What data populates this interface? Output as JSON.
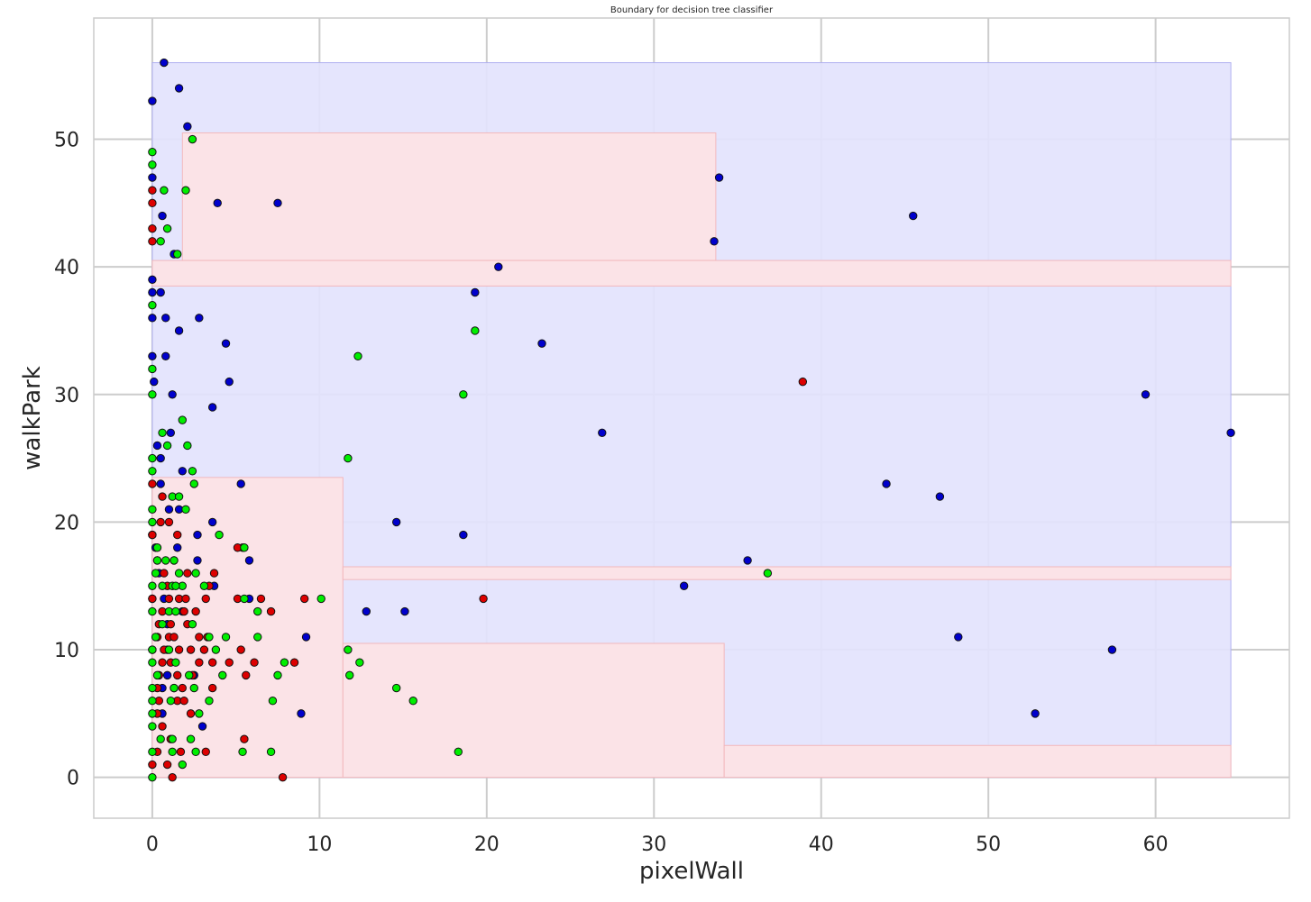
{
  "chart_data": {
    "type": "scatter",
    "title": "Boundary for decision tree classifier",
    "xlabel": "pixelWall",
    "ylabel": "walkPark",
    "xlim": [
      -3.5,
      68
    ],
    "ylim": [
      -3.2,
      59.5
    ],
    "x_ticks": [
      0,
      10,
      20,
      30,
      40,
      50,
      60
    ],
    "y_ticks": [
      0,
      10,
      20,
      30,
      40,
      50
    ],
    "grid": true,
    "colors": {
      "blue_region": "#e3e3fd",
      "red_region": "#fde3e5",
      "region_edge_blue": "#b0b0f0",
      "region_edge_red": "#f2b8bd",
      "blue_point": "#0000cc",
      "red_point": "#dd0000",
      "green_point": "#00ee00",
      "grid": "#cccccc",
      "frame": "#cccccc"
    },
    "regions": [
      {
        "class": "blue",
        "x": [
          0,
          64.5
        ],
        "y": [
          0,
          56
        ]
      },
      {
        "class": "red",
        "x": [
          1.8,
          33.7
        ],
        "y": [
          40.5,
          50.5
        ]
      },
      {
        "class": "red",
        "x": [
          0,
          64.5
        ],
        "y": [
          38.5,
          40.5
        ]
      },
      {
        "class": "red",
        "x": [
          0,
          11.4
        ],
        "y": [
          0,
          23.5
        ]
      },
      {
        "class": "red",
        "x": [
          11.4,
          64.5
        ],
        "y": [
          15.5,
          16.5
        ]
      },
      {
        "class": "red",
        "x": [
          11.4,
          34.2
        ],
        "y": [
          0,
          10.5
        ]
      },
      {
        "class": "red",
        "x": [
          34.2,
          64.5
        ],
        "y": [
          0,
          2.5
        ]
      }
    ],
    "series": [
      {
        "name": "",
        "class": "blue",
        "points": [
          [
            0.7,
            56
          ],
          [
            1.6,
            54
          ],
          [
            0,
            53
          ],
          [
            2.1,
            51
          ],
          [
            0,
            47
          ],
          [
            33.9,
            47
          ],
          [
            3.9,
            45
          ],
          [
            7.5,
            45
          ],
          [
            45.5,
            44
          ],
          [
            0.6,
            44
          ],
          [
            1.3,
            41
          ],
          [
            33.6,
            42
          ],
          [
            20.7,
            40
          ],
          [
            0,
            39
          ],
          [
            0,
            38
          ],
          [
            0.5,
            38
          ],
          [
            19.3,
            38
          ],
          [
            0,
            36
          ],
          [
            0.8,
            36
          ],
          [
            2.8,
            36
          ],
          [
            1.6,
            35
          ],
          [
            4.4,
            34
          ],
          [
            23.3,
            34
          ],
          [
            0.8,
            33
          ],
          [
            0,
            33
          ],
          [
            0.1,
            31
          ],
          [
            4.6,
            31
          ],
          [
            1.2,
            30
          ],
          [
            59.4,
            30
          ],
          [
            3.6,
            29
          ],
          [
            1.1,
            27
          ],
          [
            26.9,
            27
          ],
          [
            64.5,
            27
          ],
          [
            0.3,
            26
          ],
          [
            0.5,
            25
          ],
          [
            1.8,
            24
          ],
          [
            0.5,
            23
          ],
          [
            5.3,
            23
          ],
          [
            43.9,
            23
          ],
          [
            47.1,
            22
          ],
          [
            1,
            21
          ],
          [
            1.6,
            21
          ],
          [
            3.6,
            20
          ],
          [
            14.6,
            20
          ],
          [
            18.6,
            19
          ],
          [
            0,
            19
          ],
          [
            2.7,
            19
          ],
          [
            0.2,
            18
          ],
          [
            1.5,
            18
          ],
          [
            5.8,
            17
          ],
          [
            35.6,
            17
          ],
          [
            2.7,
            17
          ],
          [
            0.4,
            16
          ],
          [
            3.7,
            15
          ],
          [
            31.8,
            15
          ],
          [
            0,
            14
          ],
          [
            5.8,
            14
          ],
          [
            12.8,
            13
          ],
          [
            15.1,
            13
          ],
          [
            0.9,
            12
          ],
          [
            9.2,
            11
          ],
          [
            48.2,
            11
          ],
          [
            57.4,
            10
          ],
          [
            0.9,
            8
          ],
          [
            2.5,
            8
          ],
          [
            0.6,
            7
          ],
          [
            1.3,
            7
          ],
          [
            52.8,
            5
          ],
          [
            0.6,
            5
          ],
          [
            8.9,
            5
          ],
          [
            3,
            4
          ],
          [
            0.7,
            14
          ],
          [
            1.8,
            13
          ],
          [
            0.9,
            10
          ]
        ]
      },
      {
        "name": "",
        "class": "red",
        "points": [
          [
            0,
            46
          ],
          [
            0,
            45
          ],
          [
            0,
            43
          ],
          [
            0,
            42
          ],
          [
            38.9,
            31
          ],
          [
            0,
            23
          ],
          [
            0.6,
            22
          ],
          [
            0.5,
            20
          ],
          [
            1,
            20
          ],
          [
            0,
            19
          ],
          [
            1.5,
            19
          ],
          [
            3.7,
            16
          ],
          [
            2.1,
            16
          ],
          [
            0.7,
            16
          ],
          [
            5.4,
            18
          ],
          [
            5.1,
            18
          ],
          [
            0.3,
            17
          ],
          [
            1.3,
            17
          ],
          [
            3.4,
            15
          ],
          [
            0.9,
            15
          ],
          [
            0,
            14
          ],
          [
            1,
            14
          ],
          [
            1.6,
            14
          ],
          [
            2,
            14
          ],
          [
            3.2,
            14
          ],
          [
            5.1,
            14
          ],
          [
            6.5,
            14
          ],
          [
            9.1,
            14
          ],
          [
            19.8,
            14
          ],
          [
            0.6,
            13
          ],
          [
            1.9,
            13
          ],
          [
            7.1,
            13
          ],
          [
            0.4,
            12
          ],
          [
            1.1,
            12
          ],
          [
            2.1,
            12
          ],
          [
            0.3,
            11
          ],
          [
            1,
            11
          ],
          [
            2.8,
            11
          ],
          [
            3.3,
            11
          ],
          [
            0,
            10
          ],
          [
            0.7,
            10
          ],
          [
            1.6,
            10
          ],
          [
            2.3,
            10
          ],
          [
            3.1,
            10
          ],
          [
            5.3,
            10
          ],
          [
            0.6,
            9
          ],
          [
            1.1,
            9
          ],
          [
            2.8,
            9
          ],
          [
            3.6,
            9
          ],
          [
            4.6,
            9
          ],
          [
            6.1,
            9
          ],
          [
            8.5,
            9
          ],
          [
            0.4,
            8
          ],
          [
            1.5,
            8
          ],
          [
            2.4,
            8
          ],
          [
            5.6,
            8
          ],
          [
            0.3,
            7
          ],
          [
            1.8,
            7
          ],
          [
            3.6,
            7
          ],
          [
            0.4,
            6
          ],
          [
            1.5,
            6
          ],
          [
            1.9,
            6
          ],
          [
            0.3,
            5
          ],
          [
            2.3,
            5
          ],
          [
            0.6,
            4
          ],
          [
            5.5,
            3
          ],
          [
            0.3,
            2
          ],
          [
            1.7,
            2
          ],
          [
            3.2,
            2
          ],
          [
            0,
            1
          ],
          [
            0.9,
            1
          ],
          [
            1.2,
            0
          ],
          [
            7.8,
            0
          ],
          [
            1.1,
            3
          ],
          [
            2.6,
            13
          ],
          [
            1.3,
            11
          ]
        ]
      },
      {
        "name": "",
        "class": "green",
        "points": [
          [
            0,
            49
          ],
          [
            0,
            48
          ],
          [
            2.4,
            50
          ],
          [
            0.7,
            46
          ],
          [
            2,
            46
          ],
          [
            0.9,
            43
          ],
          [
            0.5,
            42
          ],
          [
            1.5,
            41
          ],
          [
            0,
            37
          ],
          [
            0,
            32
          ],
          [
            0,
            30
          ],
          [
            12.3,
            33
          ],
          [
            19.3,
            35
          ],
          [
            18.6,
            30
          ],
          [
            1.8,
            28
          ],
          [
            0.6,
            27
          ],
          [
            0.9,
            26
          ],
          [
            2.1,
            26
          ],
          [
            0,
            25
          ],
          [
            11.7,
            25
          ],
          [
            0,
            24
          ],
          [
            2.4,
            24
          ],
          [
            2.5,
            23
          ],
          [
            1.2,
            22
          ],
          [
            1.6,
            22
          ],
          [
            2,
            21
          ],
          [
            0,
            21
          ],
          [
            0,
            20
          ],
          [
            0.3,
            18
          ],
          [
            4,
            19
          ],
          [
            5.5,
            18
          ],
          [
            0.3,
            17
          ],
          [
            0.8,
            17
          ],
          [
            1.3,
            17
          ],
          [
            1.6,
            16
          ],
          [
            2.6,
            16
          ],
          [
            0,
            15
          ],
          [
            0.6,
            15
          ],
          [
            1.2,
            15
          ],
          [
            1.8,
            15
          ],
          [
            3.1,
            15
          ],
          [
            5.5,
            14
          ],
          [
            10.1,
            14
          ],
          [
            6.3,
            13
          ],
          [
            0,
            13
          ],
          [
            1,
            13
          ],
          [
            1.4,
            13
          ],
          [
            2.4,
            12
          ],
          [
            0.6,
            12
          ],
          [
            6.3,
            11
          ],
          [
            4.4,
            11
          ],
          [
            3.4,
            11
          ],
          [
            0.2,
            11
          ],
          [
            0,
            10
          ],
          [
            1,
            10
          ],
          [
            3.8,
            10
          ],
          [
            11.7,
            10
          ],
          [
            0,
            9
          ],
          [
            1.4,
            9
          ],
          [
            7.9,
            9
          ],
          [
            12.4,
            9
          ],
          [
            0.3,
            8
          ],
          [
            2.2,
            8
          ],
          [
            4.2,
            8
          ],
          [
            7.5,
            8
          ],
          [
            11.8,
            8
          ],
          [
            36.8,
            16
          ],
          [
            0,
            7
          ],
          [
            1.3,
            7
          ],
          [
            2.5,
            7
          ],
          [
            14.6,
            7
          ],
          [
            0,
            6
          ],
          [
            1.1,
            6
          ],
          [
            3.4,
            6
          ],
          [
            7.2,
            6
          ],
          [
            15.6,
            6
          ],
          [
            0,
            5
          ],
          [
            2.8,
            5
          ],
          [
            0,
            4
          ],
          [
            0.5,
            3
          ],
          [
            1.2,
            3
          ],
          [
            2.3,
            3
          ],
          [
            0,
            2
          ],
          [
            1.2,
            2
          ],
          [
            2.6,
            2
          ],
          [
            5.4,
            2
          ],
          [
            7.1,
            2
          ],
          [
            18.3,
            2
          ],
          [
            0,
            0
          ],
          [
            1.8,
            1
          ],
          [
            0.2,
            16
          ],
          [
            1.4,
            15
          ]
        ]
      }
    ]
  }
}
